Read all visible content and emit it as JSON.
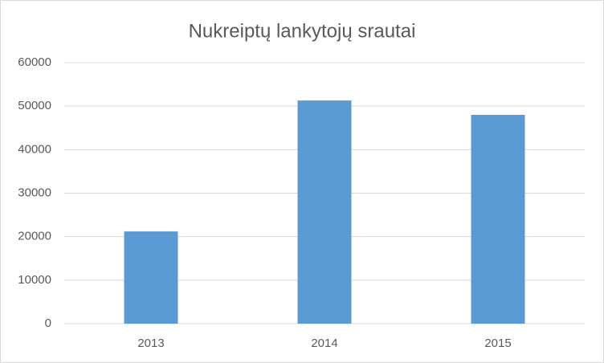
{
  "chart_data": {
    "type": "bar",
    "title": "Nukreiptų lankytojų srautai",
    "categories": [
      "2013",
      "2014",
      "2015"
    ],
    "values": [
      21200,
      51300,
      48000
    ],
    "color": "#5b9bd5",
    "ylim": [
      0,
      60000
    ],
    "yticks": [
      0,
      10000,
      20000,
      30000,
      40000,
      50000,
      60000
    ],
    "grid": true
  }
}
